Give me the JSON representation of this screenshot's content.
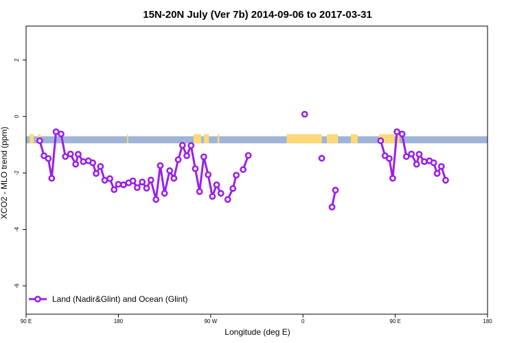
{
  "chart_data": {
    "type": "line",
    "title": "15N-20N July (Ver 7b)   2014-09-06 to 2017-03-31",
    "xlabel": "Longitude (deg E)",
    "ylabel": "XCO2 - MLO trend (ppm)",
    "xlim": [
      -90,
      180
    ],
    "ylim": [
      -7,
      3.2
    ],
    "x_ticks": [
      {
        "value": -90,
        "label": "90 E"
      },
      {
        "value": -36,
        "label": "180"
      },
      {
        "value": 18,
        "label": "90 W"
      },
      {
        "value": 72,
        "label": "0"
      },
      {
        "value": 126,
        "label": "90 E"
      },
      {
        "value": 180,
        "label": "180"
      }
    ],
    "y_ticks": [
      {
        "value": 2,
        "label": "2"
      },
      {
        "value": 0,
        "label": "0"
      },
      {
        "value": -2,
        "label": "-2"
      },
      {
        "value": -4,
        "label": "-4"
      },
      {
        "value": -6,
        "label": "-6"
      }
    ],
    "colors": {
      "series": "#9a1fe6",
      "ocean_band": "#a0b4d8",
      "land_band": "#fdd97a"
    },
    "background_band": {
      "y_top": -0.7,
      "y_bottom": -0.95
    },
    "land_segments": [
      [
        -88.0,
        -85.5
      ],
      [
        -83.0,
        -81.5
      ],
      [
        -31.0,
        -30.3
      ],
      [
        8.0,
        12.5
      ],
      [
        14.0,
        17.0
      ],
      [
        22.0,
        23.0
      ],
      [
        62.5,
        83.0
      ],
      [
        86.0,
        92.5
      ],
      [
        100.0,
        104.0
      ],
      [
        116.5,
        122.5
      ],
      [
        122.5,
        125.5
      ],
      [
        127.0,
        128.5
      ]
    ],
    "legend": {
      "label": "Land (Nadir&Glint) and Ocean (Glint)",
      "position": "bottom-left"
    },
    "series": [
      {
        "name": "Land (Nadir&Glint) and Ocean (Glint)",
        "segments": [
          [
            [
              -82,
              -0.86
            ],
            [
              -79.5,
              -1.39
            ],
            [
              -77,
              -1.49
            ],
            [
              -75,
              -2.19
            ],
            [
              -72.5,
              -0.54
            ],
            [
              -69.5,
              -0.62
            ],
            [
              -67,
              -1.42
            ],
            [
              -64,
              -1.33
            ],
            [
              -61,
              -1.69
            ],
            [
              -59.5,
              -1.34
            ],
            [
              -56.5,
              -1.6
            ],
            [
              -53.5,
              -1.57
            ],
            [
              -51,
              -1.64
            ],
            [
              -49,
              -2.02
            ],
            [
              -46.5,
              -1.77
            ],
            [
              -44,
              -2.26
            ],
            [
              -41,
              -2.2
            ],
            [
              -38.5,
              -2.59
            ],
            [
              -36,
              -2.4
            ],
            [
              -33,
              -2.42
            ],
            [
              -30,
              -2.35
            ],
            [
              -27.5,
              -2.28
            ],
            [
              -25,
              -2.52
            ],
            [
              -22,
              -2.32
            ],
            [
              -19.5,
              -2.54
            ],
            [
              -17,
              -2.25
            ],
            [
              -14,
              -2.94
            ],
            [
              -11.5,
              -1.74
            ],
            [
              -9,
              -2.72
            ],
            [
              -6,
              -1.92
            ],
            [
              -3.5,
              -2.19
            ],
            [
              -1,
              -1.53
            ],
            [
              1.5,
              -1.02
            ],
            [
              4,
              -1.39
            ],
            [
              6.5,
              -1.03
            ],
            [
              9,
              -1.85
            ],
            [
              11.5,
              -2.66
            ],
            [
              14,
              -1.43
            ],
            [
              16.5,
              -2.06
            ],
            [
              19,
              -2.83
            ],
            [
              21.5,
              -2.42
            ],
            [
              24,
              -2.72
            ]
          ],
          [
            [
              28,
              -2.94
            ],
            [
              31,
              -2.55
            ],
            [
              33,
              -2.08
            ]
          ],
          [
            [
              37,
              -1.88
            ],
            [
              40,
              -1.38
            ]
          ],
          [
            [
              73,
              0.08
            ]
          ],
          [
            [
              83,
              -1.48
            ]
          ],
          [
            [
              89,
              -3.21
            ],
            [
              91,
              -2.61
            ]
          ],
          [
            [
              117.5,
              -0.86
            ],
            [
              120,
              -1.39
            ],
            [
              122.5,
              -1.49
            ],
            [
              124.5,
              -2.19
            ],
            [
              127,
              -0.54
            ],
            [
              130,
              -0.62
            ],
            [
              132.5,
              -1.42
            ],
            [
              135.5,
              -1.33
            ],
            [
              138.5,
              -1.69
            ],
            [
              140,
              -1.34
            ],
            [
              143,
              -1.6
            ],
            [
              146,
              -1.57
            ],
            [
              148.5,
              -1.64
            ],
            [
              150.5,
              -2.02
            ],
            [
              153,
              -1.77
            ],
            [
              155.5,
              -2.26
            ]
          ]
        ]
      }
    ]
  }
}
